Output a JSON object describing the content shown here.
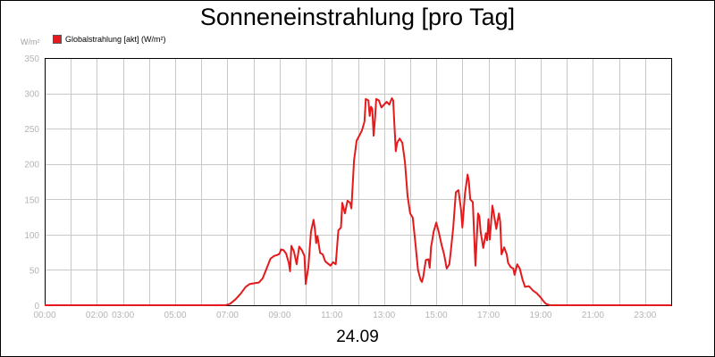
{
  "chart_data": {
    "type": "line",
    "title": "Sonneneinstrahlung [pro Tag]",
    "ylabel": "W/m²",
    "xlabel": "24.09",
    "legend": [
      {
        "name": "Globalstrahlung [akt] (W/m²)",
        "color": "#e41a1c"
      }
    ],
    "legend_position": "top-left",
    "grid": true,
    "ylim": [
      0,
      350
    ],
    "xlim_hours": [
      0,
      24
    ],
    "y_ticks": [
      "0",
      "50",
      "100",
      "150",
      "200",
      "250",
      "300",
      "350"
    ],
    "x_ticks": [
      {
        "h": 0,
        "label": "00:00"
      },
      {
        "h": 2,
        "label": "02:00"
      },
      {
        "h": 3,
        "label": "03:00"
      },
      {
        "h": 5,
        "label": "05:00"
      },
      {
        "h": 7,
        "label": "07:00"
      },
      {
        "h": 9,
        "label": "09:00"
      },
      {
        "h": 11,
        "label": "11:00"
      },
      {
        "h": 13,
        "label": "13:00"
      },
      {
        "h": 15,
        "label": "15:00"
      },
      {
        "h": 17,
        "label": "17:00"
      },
      {
        "h": 19,
        "label": "19:00"
      },
      {
        "h": 21,
        "label": "21:00"
      },
      {
        "h": 23,
        "label": "23:00"
      }
    ],
    "series": [
      {
        "name": "Globalstrahlung [akt] (W/m²)",
        "color": "#e41a1c",
        "points": [
          [
            0,
            0
          ],
          [
            6.93,
            0
          ],
          [
            7.1,
            2
          ],
          [
            7.3,
            8
          ],
          [
            7.5,
            16
          ],
          [
            7.7,
            26
          ],
          [
            7.85,
            30
          ],
          [
            8.0,
            31
          ],
          [
            8.2,
            32
          ],
          [
            8.35,
            38
          ],
          [
            8.5,
            52
          ],
          [
            8.65,
            66
          ],
          [
            8.8,
            70
          ],
          [
            8.9,
            71
          ],
          [
            9.0,
            73
          ],
          [
            9.05,
            79
          ],
          [
            9.15,
            78
          ],
          [
            9.25,
            73
          ],
          [
            9.35,
            60
          ],
          [
            9.4,
            48
          ],
          [
            9.45,
            84
          ],
          [
            9.55,
            76
          ],
          [
            9.65,
            58
          ],
          [
            9.75,
            83
          ],
          [
            9.85,
            78
          ],
          [
            9.95,
            70
          ],
          [
            10.0,
            30
          ],
          [
            10.1,
            54
          ],
          [
            10.2,
            104
          ],
          [
            10.3,
            121
          ],
          [
            10.35,
            108
          ],
          [
            10.4,
            88
          ],
          [
            10.45,
            98
          ],
          [
            10.55,
            74
          ],
          [
            10.65,
            72
          ],
          [
            10.75,
            62
          ],
          [
            10.85,
            59
          ],
          [
            10.95,
            56
          ],
          [
            11.05,
            61
          ],
          [
            11.15,
            58
          ],
          [
            11.25,
            106
          ],
          [
            11.3,
            108
          ],
          [
            11.35,
            110
          ],
          [
            11.4,
            145
          ],
          [
            11.5,
            130
          ],
          [
            11.6,
            148
          ],
          [
            11.7,
            145
          ],
          [
            11.75,
            137
          ],
          [
            11.85,
            205
          ],
          [
            11.95,
            233
          ],
          [
            12.05,
            240
          ],
          [
            12.15,
            247
          ],
          [
            12.25,
            260
          ],
          [
            12.3,
            292
          ],
          [
            12.4,
            290
          ],
          [
            12.45,
            268
          ],
          [
            12.5,
            281
          ],
          [
            12.55,
            278
          ],
          [
            12.6,
            240
          ],
          [
            12.65,
            262
          ],
          [
            12.7,
            292
          ],
          [
            12.8,
            290
          ],
          [
            12.9,
            280
          ],
          [
            13.0,
            284
          ],
          [
            13.1,
            288
          ],
          [
            13.2,
            284
          ],
          [
            13.3,
            293
          ],
          [
            13.35,
            290
          ],
          [
            13.4,
            253
          ],
          [
            13.45,
            218
          ],
          [
            13.5,
            230
          ],
          [
            13.6,
            236
          ],
          [
            13.7,
            230
          ],
          [
            13.8,
            203
          ],
          [
            13.9,
            155
          ],
          [
            14.0,
            130
          ],
          [
            14.1,
            124
          ],
          [
            14.2,
            88
          ],
          [
            14.3,
            50
          ],
          [
            14.4,
            36
          ],
          [
            14.45,
            33
          ],
          [
            14.5,
            40
          ],
          [
            14.6,
            64
          ],
          [
            14.7,
            65
          ],
          [
            14.75,
            53
          ],
          [
            14.8,
            82
          ],
          [
            14.9,
            104
          ],
          [
            15.0,
            117
          ],
          [
            15.1,
            103
          ],
          [
            15.2,
            86
          ],
          [
            15.3,
            72
          ],
          [
            15.4,
            52
          ],
          [
            15.5,
            58
          ],
          [
            15.55,
            74
          ],
          [
            15.65,
            110
          ],
          [
            15.75,
            160
          ],
          [
            15.85,
            163
          ],
          [
            15.95,
            135
          ],
          [
            16.0,
            110
          ],
          [
            16.1,
            158
          ],
          [
            16.2,
            185
          ],
          [
            16.25,
            175
          ],
          [
            16.3,
            150
          ],
          [
            16.4,
            146
          ],
          [
            16.5,
            56
          ],
          [
            16.6,
            130
          ],
          [
            16.65,
            126
          ],
          [
            16.7,
            104
          ],
          [
            16.8,
            81
          ],
          [
            16.9,
            102
          ],
          [
            16.95,
            92
          ],
          [
            17.0,
            122
          ],
          [
            17.05,
            93
          ],
          [
            17.15,
            141
          ],
          [
            17.2,
            131
          ],
          [
            17.3,
            108
          ],
          [
            17.4,
            130
          ],
          [
            17.45,
            118
          ],
          [
            17.5,
            72
          ],
          [
            17.6,
            82
          ],
          [
            17.7,
            72
          ],
          [
            17.75,
            60
          ],
          [
            17.85,
            54
          ],
          [
            17.95,
            52
          ],
          [
            18.0,
            43
          ],
          [
            18.1,
            58
          ],
          [
            18.2,
            52
          ],
          [
            18.3,
            37
          ],
          [
            18.4,
            26
          ],
          [
            18.55,
            27
          ],
          [
            18.7,
            21
          ],
          [
            18.85,
            17
          ],
          [
            19.0,
            11
          ],
          [
            19.1,
            6
          ],
          [
            19.2,
            2
          ],
          [
            19.35,
            0
          ],
          [
            24,
            0
          ]
        ]
      }
    ]
  }
}
